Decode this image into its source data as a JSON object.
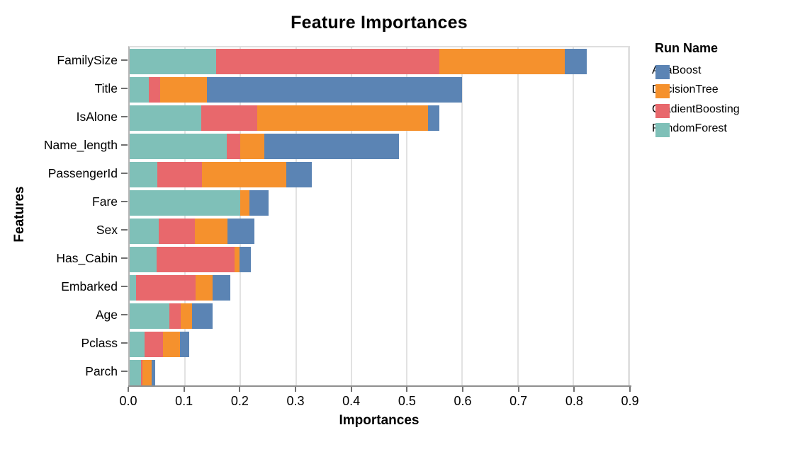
{
  "chart_data": {
    "type": "bar",
    "orientation": "horizontal",
    "stacked": true,
    "title": "Feature Importances",
    "xlabel": "Importances",
    "ylabel": "Features",
    "legend_title": "Run Name",
    "legend_position": "right",
    "grid": true,
    "xlim": [
      0,
      0.9
    ],
    "x_ticks": [
      0.0,
      0.1,
      0.2,
      0.3,
      0.4,
      0.5,
      0.6,
      0.7,
      0.8,
      0.9
    ],
    "x_tick_labels": [
      "0.0",
      "0.1",
      "0.2",
      "0.3",
      "0.4",
      "0.5",
      "0.6",
      "0.7",
      "0.8",
      "0.9"
    ],
    "categories": [
      "FamilySize",
      "Title",
      "IsAlone",
      "Name_length",
      "PassengerId",
      "Fare",
      "Sex",
      "Has_Cabin",
      "Embarked",
      "Age",
      "Pclass",
      "Parch"
    ],
    "stack_order": [
      "RandomForest",
      "GradientBoosting",
      "DecisionTree",
      "AdaBoost"
    ],
    "series": [
      {
        "name": "AdaBoost",
        "color": "#5b84b4",
        "values": [
          0.039,
          0.46,
          0.021,
          0.243,
          0.046,
          0.034,
          0.048,
          0.021,
          0.032,
          0.036,
          0.016,
          0.006
        ]
      },
      {
        "name": "DecisionTree",
        "color": "#f5912d",
        "values": [
          0.226,
          0.084,
          0.308,
          0.044,
          0.153,
          0.016,
          0.06,
          0.009,
          0.031,
          0.021,
          0.031,
          0.017
        ]
      },
      {
        "name": "GradientBoosting",
        "color": "#e8686c",
        "values": [
          0.403,
          0.021,
          0.101,
          0.024,
          0.08,
          0.0,
          0.064,
          0.14,
          0.107,
          0.02,
          0.033,
          0.003
        ]
      },
      {
        "name": "RandomForest",
        "color": "#7fc0b8",
        "values": [
          0.156,
          0.034,
          0.129,
          0.175,
          0.05,
          0.2,
          0.053,
          0.049,
          0.012,
          0.072,
          0.027,
          0.02
        ]
      }
    ]
  },
  "colors": {
    "background": "#ffffff",
    "gridline": "#e2e2e2",
    "plot_border": "#dedede",
    "axis_line": "#8f8f8f",
    "tick": "#6f6f6f",
    "text": "#000000"
  }
}
